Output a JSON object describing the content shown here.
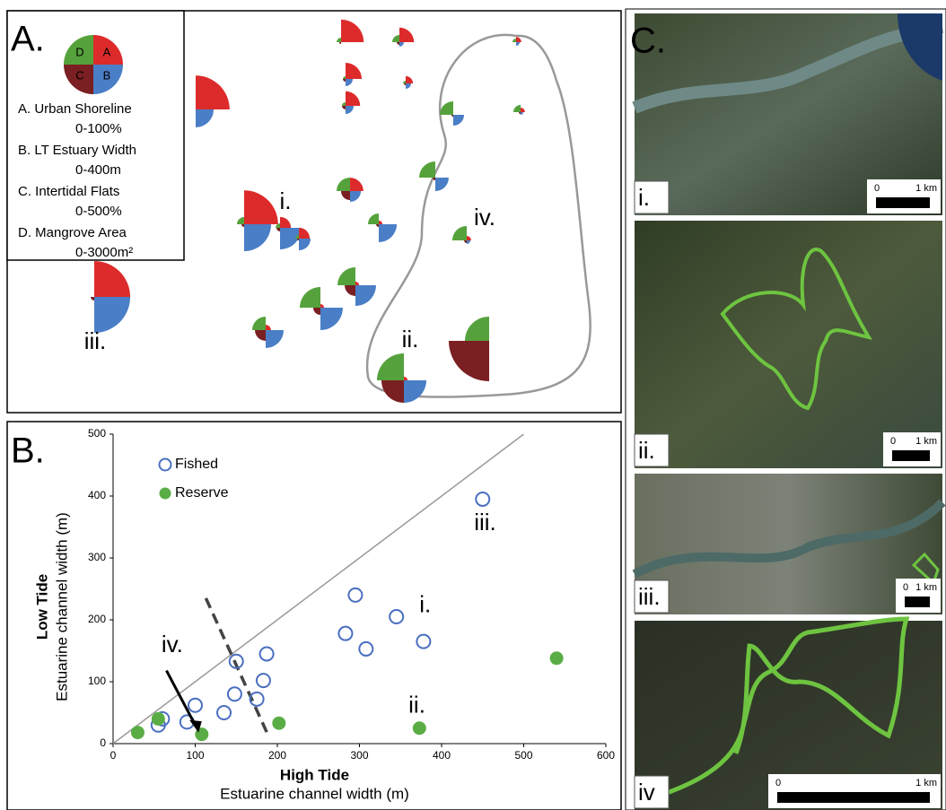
{
  "panel_a": {
    "label": "A.",
    "legend": [
      {
        "letter": "A",
        "name": "A. Urban Shoreline",
        "range_label": "0-100%",
        "range": [
          0,
          100
        ],
        "color": "#dd2b2b"
      },
      {
        "letter": "B",
        "name": "B. LT Estuary Width",
        "range_label": "0-400m",
        "range": [
          0,
          400
        ],
        "color": "#4a7ec6"
      },
      {
        "letter": "C",
        "name": "C. Intertidal Flats",
        "range_label": "0-500%",
        "range": [
          0,
          500
        ],
        "color": "#7a1f22"
      },
      {
        "letter": "D",
        "name": "D. Mangrove Area",
        "range_label": "0-3000m²",
        "range": [
          0,
          3000
        ],
        "color": "#55a23c"
      }
    ],
    "glyphs": [
      [
        84,
        178,
        0,
        0
      ],
      [
        56,
        0,
        22,
        333
      ],
      [
        36,
        44,
        33,
        533
      ],
      [
        13,
        36,
        0,
        267
      ],
      [
        40,
        71,
        33,
        200
      ],
      [
        18,
        53,
        22,
        200
      ],
      [
        36,
        80,
        44,
        267
      ],
      [
        0,
        107,
        22,
        1000
      ],
      [
        11,
        27,
        22,
        533
      ],
      [
        0,
        133,
        33,
        1200
      ],
      [
        33,
        107,
        111,
        1000
      ],
      [
        84,
        267,
        33,
        533
      ],
      [
        27,
        213,
        44,
        333
      ],
      [
        27,
        116,
        22,
        267
      ],
      [
        9,
        178,
        33,
        800
      ],
      [
        11,
        36,
        33,
        1067
      ],
      [
        89,
        356,
        44,
        0
      ],
      [
        9,
        204,
        133,
        1333
      ],
      [
        9,
        222,
        89,
        1533
      ],
      [
        13,
        178,
        133,
        1000
      ],
      [
        9,
        222,
        278,
        2000
      ],
      [
        0,
        0,
        500,
        1800
      ]
    ],
    "site_labels": [
      "i.",
      "ii.",
      "iii.",
      "iv."
    ]
  },
  "chart_data": {
    "type": "scatter",
    "label": "B.",
    "x_label_bold": "High Tide",
    "x_label": "Estuarine channel width (m)",
    "y_label_bold": "Low Tide",
    "y_label": "Estuarine channel width (m)",
    "xlim": [
      0,
      600
    ],
    "ylim": [
      0,
      500
    ],
    "xticks": [
      0,
      100,
      200,
      300,
      400,
      500,
      600
    ],
    "yticks": [
      0,
      100,
      200,
      300,
      400,
      500
    ],
    "series": [
      {
        "name": "Fished",
        "color": "#4a6fc0",
        "filled": false,
        "x": [
          55,
          60,
          90,
          100,
          135,
          148,
          150,
          175,
          183,
          187,
          283,
          295,
          308,
          345,
          378,
          450
        ],
        "values": [
          30,
          40,
          35,
          62,
          50,
          80,
          133,
          72,
          102,
          145,
          178,
          240,
          153,
          205,
          165,
          395
        ]
      },
      {
        "name": "Reserve",
        "color": "#5aad45",
        "filled": true,
        "x": [
          30,
          55,
          108,
          202,
          373,
          540
        ],
        "values": [
          18,
          40,
          15,
          33,
          25,
          138
        ]
      }
    ],
    "annotations": [
      "i.",
      "ii.",
      "iii.",
      "iv."
    ]
  },
  "panel_c": {
    "label": "C.",
    "images": [
      {
        "label": "i.",
        "scale_start": "0",
        "scale_end": "1 km"
      },
      {
        "label": "ii.",
        "scale_start": "0",
        "scale_end": "1 km"
      },
      {
        "label": "iii.",
        "scale_start": "0",
        "scale_end": "1 km"
      },
      {
        "label": "iv",
        "scale_start": "0",
        "scale_end": "1 km"
      }
    ]
  }
}
